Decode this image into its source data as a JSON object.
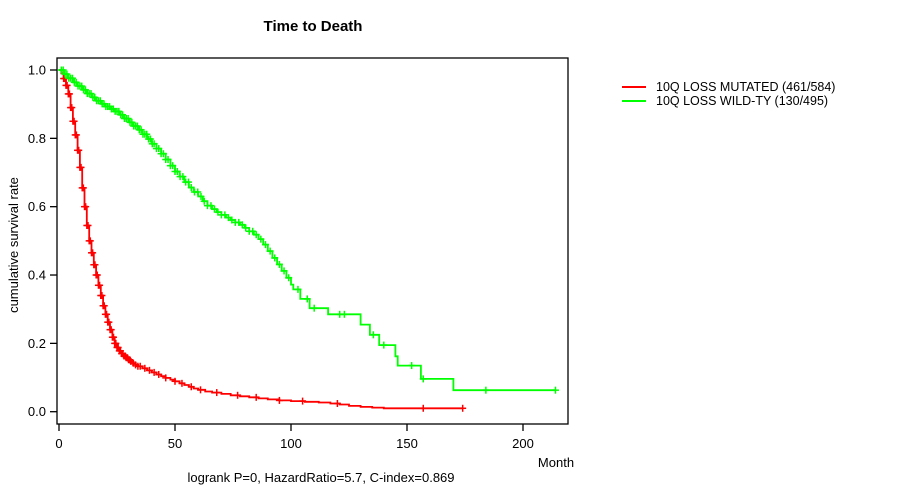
{
  "chart_data": {
    "type": "line",
    "subtype": "kaplan-meier-step-survival",
    "title": "Time to Death",
    "xlabel": "Month",
    "ylabel": "cumulative survival rate",
    "annotation": "logrank P=0, HazardRatio=5.7, C-index=0.869",
    "grid": false,
    "legend_position": "outside-right",
    "x_axis": {
      "ticks": [
        0,
        50,
        100,
        150,
        200
      ],
      "lim": [
        0,
        220
      ]
    },
    "y_axis": {
      "ticks": [
        0.0,
        0.2,
        0.4,
        0.6,
        0.8,
        1.0
      ],
      "lim": [
        0.0,
        1.0
      ]
    },
    "series": [
      {
        "name": "10Q LOSS MUTATED (461/584)",
        "color": "#ff0000",
        "points": [
          [
            0,
            1.0
          ],
          [
            1,
            0.99
          ],
          [
            2,
            0.975
          ],
          [
            3,
            0.955
          ],
          [
            4,
            0.93
          ],
          [
            5,
            0.89
          ],
          [
            6,
            0.85
          ],
          [
            7,
            0.81
          ],
          [
            8,
            0.765
          ],
          [
            9,
            0.715
          ],
          [
            10,
            0.655
          ],
          [
            11,
            0.6
          ],
          [
            12,
            0.545
          ],
          [
            13,
            0.5
          ],
          [
            14,
            0.465
          ],
          [
            15,
            0.43
          ],
          [
            16,
            0.4
          ],
          [
            17,
            0.37
          ],
          [
            18,
            0.34
          ],
          [
            19,
            0.31
          ],
          [
            20,
            0.285
          ],
          [
            21,
            0.262
          ],
          [
            22,
            0.24
          ],
          [
            23,
            0.218
          ],
          [
            24,
            0.2
          ],
          [
            25,
            0.188
          ],
          [
            26,
            0.178
          ],
          [
            27,
            0.17
          ],
          [
            28,
            0.163
          ],
          [
            29,
            0.158
          ],
          [
            30,
            0.152
          ],
          [
            31,
            0.147
          ],
          [
            32,
            0.142
          ],
          [
            33,
            0.137
          ],
          [
            34,
            0.133
          ],
          [
            36,
            0.127
          ],
          [
            38,
            0.121
          ],
          [
            40,
            0.115
          ],
          [
            42,
            0.109
          ],
          [
            44,
            0.104
          ],
          [
            46,
            0.099
          ],
          [
            48,
            0.094
          ],
          [
            50,
            0.089
          ],
          [
            52,
            0.083
          ],
          [
            54,
            0.078
          ],
          [
            56,
            0.073
          ],
          [
            58,
            0.068
          ],
          [
            60,
            0.064
          ],
          [
            63,
            0.059
          ],
          [
            66,
            0.056
          ],
          [
            70,
            0.052
          ],
          [
            74,
            0.048
          ],
          [
            78,
            0.045
          ],
          [
            82,
            0.042
          ],
          [
            86,
            0.039
          ],
          [
            90,
            0.036
          ],
          [
            95,
            0.033
          ],
          [
            100,
            0.031
          ],
          [
            106,
            0.029
          ],
          [
            112,
            0.027
          ],
          [
            117,
            0.024
          ],
          [
            121,
            0.021
          ],
          [
            125,
            0.017
          ],
          [
            130,
            0.014
          ],
          [
            135,
            0.012
          ],
          [
            140,
            0.01
          ],
          [
            174,
            0.01
          ]
        ],
        "censor_times": [
          2,
          2.5,
          3,
          3.5,
          4,
          4.5,
          5,
          5.5,
          6,
          6.5,
          7,
          7.5,
          8,
          8.5,
          9,
          9.5,
          10,
          10.5,
          11,
          11.5,
          12,
          12.5,
          13,
          13.5,
          14,
          14.5,
          15,
          15.5,
          16,
          16.5,
          17,
          17.5,
          18,
          18.5,
          19,
          19.5,
          20,
          20.5,
          21,
          21.5,
          22,
          22.5,
          23,
          23.5,
          24,
          24.5,
          25,
          25.5,
          26,
          26.5,
          27,
          27.5,
          28,
          28.5,
          29,
          29.5,
          30,
          30.5,
          31,
          32,
          33,
          34,
          35,
          37,
          39,
          41,
          43,
          46,
          50,
          53,
          57,
          61,
          68,
          77,
          85,
          95,
          105,
          120,
          157,
          174
        ]
      },
      {
        "name": "10Q LOSS WILD-TY (130/495)",
        "color": "#00ff00",
        "points": [
          [
            0,
            1.0
          ],
          [
            2,
            0.988
          ],
          [
            4,
            0.976
          ],
          [
            6,
            0.964
          ],
          [
            8,
            0.953
          ],
          [
            10,
            0.942
          ],
          [
            12,
            0.931
          ],
          [
            14,
            0.92
          ],
          [
            16,
            0.91
          ],
          [
            18,
            0.901
          ],
          [
            20,
            0.893
          ],
          [
            22,
            0.886
          ],
          [
            24,
            0.879
          ],
          [
            26,
            0.869
          ],
          [
            28,
            0.858
          ],
          [
            30,
            0.847
          ],
          [
            32,
            0.836
          ],
          [
            34,
            0.825
          ],
          [
            36,
            0.812
          ],
          [
            38,
            0.798
          ],
          [
            40,
            0.784
          ],
          [
            42,
            0.77
          ],
          [
            44,
            0.755
          ],
          [
            46,
            0.738
          ],
          [
            48,
            0.72
          ],
          [
            50,
            0.703
          ],
          [
            52,
            0.688
          ],
          [
            54,
            0.672
          ],
          [
            56,
            0.656
          ],
          [
            58,
            0.643
          ],
          [
            60,
            0.63
          ],
          [
            62,
            0.616
          ],
          [
            64,
            0.603
          ],
          [
            66,
            0.593
          ],
          [
            68,
            0.584
          ],
          [
            70,
            0.576
          ],
          [
            72,
            0.568
          ],
          [
            74,
            0.561
          ],
          [
            76,
            0.554
          ],
          [
            78,
            0.547
          ],
          [
            80,
            0.538
          ],
          [
            82,
            0.528
          ],
          [
            84,
            0.518
          ],
          [
            86,
            0.505
          ],
          [
            88,
            0.489
          ],
          [
            90,
            0.47
          ],
          [
            92,
            0.45
          ],
          [
            94,
            0.431
          ],
          [
            96,
            0.412
          ],
          [
            98,
            0.392
          ],
          [
            100,
            0.372
          ],
          [
            101,
            0.358
          ],
          [
            104,
            0.33
          ],
          [
            108,
            0.303
          ],
          [
            116,
            0.285
          ],
          [
            130,
            0.255
          ],
          [
            134,
            0.225
          ],
          [
            138,
            0.195
          ],
          [
            145,
            0.162
          ],
          [
            146,
            0.135
          ],
          [
            156,
            0.096
          ],
          [
            170,
            0.063
          ],
          [
            214,
            0.063
          ]
        ],
        "censor_times": [
          1,
          1.8,
          2.6,
          3.4,
          4.2,
          5,
          5.8,
          6.6,
          7.4,
          8.2,
          9,
          9.8,
          10.6,
          11.4,
          12.2,
          13,
          13.8,
          14.6,
          15.4,
          16.2,
          17,
          17.8,
          18.6,
          19.4,
          20.2,
          21,
          21.8,
          22.6,
          23.4,
          24.2,
          25,
          25.8,
          26.6,
          27.4,
          28.2,
          29,
          29.8,
          30.6,
          31.4,
          32.2,
          33,
          33.8,
          34.6,
          35.4,
          36.2,
          37,
          37.8,
          38.6,
          39.4,
          40.2,
          41,
          42,
          43,
          44,
          45,
          46,
          47,
          48,
          49,
          50,
          51,
          52.2,
          53.4,
          54.6,
          55.8,
          57,
          58.4,
          59.8,
          61.2,
          62.6,
          64,
          65.5,
          67,
          68.5,
          70,
          71.5,
          73,
          74.5,
          76,
          77.5,
          79,
          80.5,
          82,
          83.5,
          85,
          87,
          89,
          91,
          93,
          95,
          97,
          99,
          103,
          107,
          110,
          121,
          123,
          135.5,
          140,
          152,
          157,
          184,
          214
        ]
      }
    ]
  }
}
